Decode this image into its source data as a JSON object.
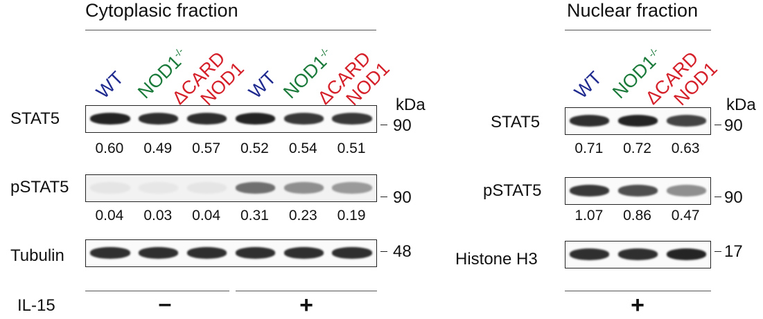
{
  "colors": {
    "wt": "#1f2a8f",
    "nod1ko": "#1a7a3a",
    "dcard": "#d5202a",
    "band": "#1e1e1e"
  },
  "cytoplasmic": {
    "title": "Cytoplasic fraction",
    "lanes": [
      {
        "name": "WT",
        "color_key": "wt"
      },
      {
        "name": "NOD1",
        "sup": "-/-",
        "color_key": "nod1ko"
      },
      {
        "name": "ΔCARD",
        "color_key": "dcard"
      },
      {
        "name": "NOD1",
        "color_key": "dcard"
      },
      {
        "name": "WT",
        "color_key": "wt"
      },
      {
        "name": "NOD1",
        "sup": "-/-",
        "color_key": "nod1ko"
      },
      {
        "name": "ΔCARD",
        "color_key": "dcard"
      },
      {
        "name": "NOD1",
        "color_key": "dcard"
      }
    ],
    "kda_header": "kDa",
    "rows": [
      {
        "label": "STAT5",
        "kda": "90",
        "quant": [
          "0.60",
          "0.49",
          "0.57",
          "0.52",
          "0.54",
          "0.51"
        ],
        "band_intensity": [
          0.95,
          0.9,
          0.9,
          0.95,
          0.85,
          0.85
        ]
      },
      {
        "label": "pSTAT5",
        "kda": "90",
        "quant": [
          "0.04",
          "0.03",
          "0.04",
          "0.31",
          "0.23",
          "0.19"
        ],
        "band_intensity": [
          0.05,
          0.04,
          0.05,
          0.6,
          0.45,
          0.4
        ]
      },
      {
        "label": "Tubulin",
        "kda": "48",
        "quant": [],
        "band_intensity": [
          0.9,
          0.9,
          0.9,
          0.9,
          0.9,
          0.9
        ]
      }
    ],
    "treatment_label": "IL-15",
    "treatment": [
      "–",
      "+"
    ]
  },
  "nuclear": {
    "title": "Nuclear fraction",
    "lanes": [
      {
        "name": "WT",
        "color_key": "wt"
      },
      {
        "name": "NOD1",
        "sup": "-/-",
        "color_key": "nod1ko"
      },
      {
        "name": "ΔCARD",
        "color_key": "dcard"
      },
      {
        "name": "NOD1",
        "color_key": "dcard"
      }
    ],
    "kda_header": "kDa",
    "rows": [
      {
        "label": "STAT5",
        "kda": "90",
        "quant": [
          "0.71",
          "0.72",
          "0.63"
        ],
        "band_intensity": [
          0.9,
          0.95,
          0.8
        ]
      },
      {
        "label": "pSTAT5",
        "kda": "90",
        "quant": [
          "1.07",
          "0.86",
          "0.47"
        ],
        "band_intensity": [
          0.85,
          0.75,
          0.45
        ]
      },
      {
        "label": "Histone H3",
        "kda": "17",
        "quant": [],
        "band_intensity": [
          0.9,
          0.9,
          0.95
        ]
      }
    ],
    "treatment": [
      "+"
    ]
  }
}
